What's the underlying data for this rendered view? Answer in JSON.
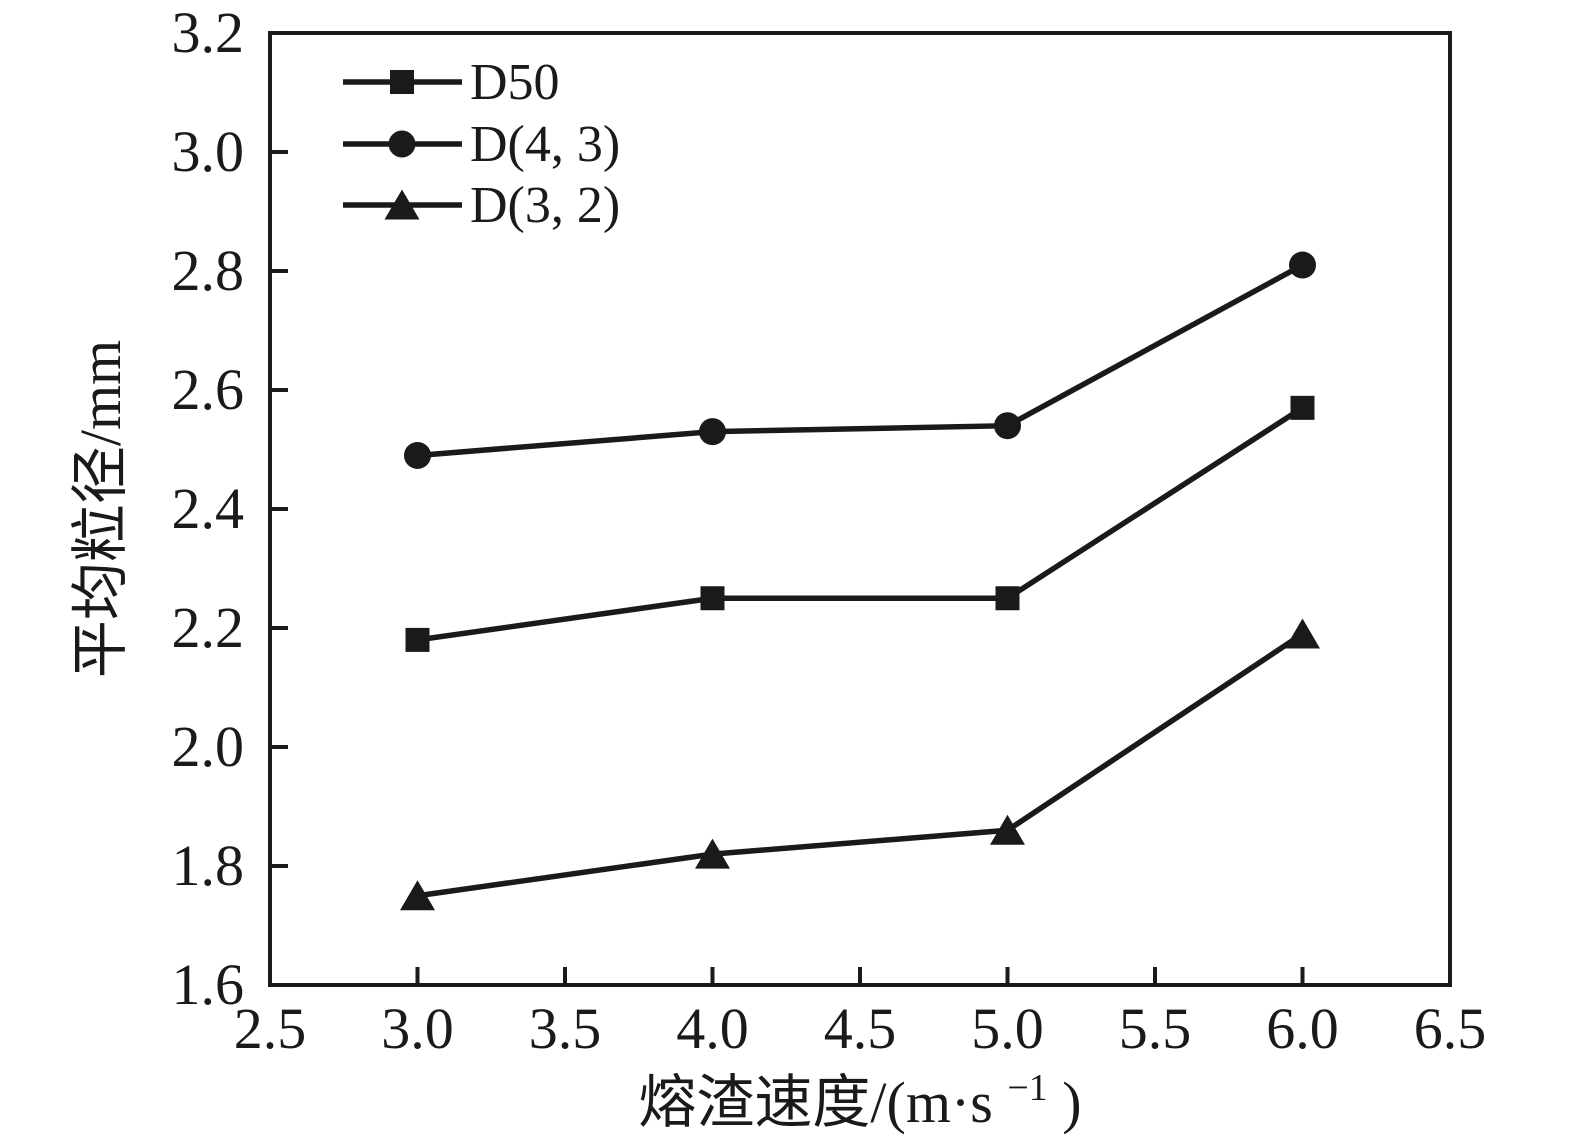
{
  "chart_data": {
    "type": "line",
    "title": "",
    "xlabel": "熔渣速度/(m·s⁻¹)",
    "xlabel_parts": {
      "pre": "熔渣速度/(m·s",
      "sup": "−1",
      "post": ")"
    },
    "ylabel": "平均粒径/mm",
    "xlim": [
      2.5,
      6.5
    ],
    "ylim": [
      1.6,
      3.2
    ],
    "xticks": [
      2.5,
      3.0,
      3.5,
      4.0,
      4.5,
      5.0,
      5.5,
      6.0,
      6.5
    ],
    "xtick_labels": [
      "2.5",
      "3.0",
      "3.5",
      "4.0",
      "4.5",
      "5.0",
      "5.5",
      "6.0",
      "6.5"
    ],
    "yticks": [
      1.6,
      1.8,
      2.0,
      2.2,
      2.4,
      2.6,
      2.8,
      3.0,
      3.2
    ],
    "ytick_labels": [
      "1.6",
      "1.8",
      "2.0",
      "2.2",
      "2.4",
      "2.6",
      "2.8",
      "3.0",
      "3.2"
    ],
    "grid": false,
    "legend_position": "top-left",
    "line_color": "#1a1a1a",
    "x": [
      3.0,
      4.0,
      5.0,
      6.0
    ],
    "series": [
      {
        "name": "D50",
        "marker": "square",
        "values": [
          2.18,
          2.25,
          2.25,
          2.57
        ]
      },
      {
        "name": "D(4, 3)",
        "marker": "circle",
        "values": [
          2.49,
          2.53,
          2.54,
          2.81
        ]
      },
      {
        "name": "D(3, 2)",
        "marker": "triangle",
        "values": [
          1.75,
          1.82,
          1.86,
          2.19
        ]
      }
    ]
  }
}
